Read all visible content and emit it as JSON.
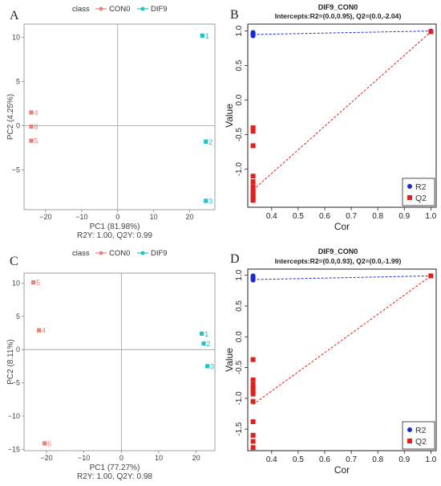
{
  "colors": {
    "con": "#F07E72",
    "dif": "#1EC3C8",
    "r2": "#1A2BD6",
    "q2": "#E0201B"
  },
  "chart_data": [
    {
      "id": "A",
      "panel_label": "A",
      "type": "scatter",
      "legend_title": "class",
      "legend": [
        "CON0",
        "DIF9"
      ],
      "xlabel": "PC1 (81.98%)",
      "ylabel": "PC2 (4.25%)",
      "footnote": "R2Y: 1.00, Q2Y: 0.99",
      "xlim": [
        -26,
        27
      ],
      "ylim": [
        -9.5,
        11.5
      ],
      "xticks": [
        -20,
        -10,
        0,
        10,
        20
      ],
      "yticks": [
        -5,
        0,
        5,
        10
      ],
      "grid": false,
      "points": [
        {
          "x": -24,
          "y": 1.5,
          "label": "4",
          "class": "CON0"
        },
        {
          "x": -24,
          "y": -0.1,
          "label": "6",
          "class": "CON0"
        },
        {
          "x": -24,
          "y": -1.7,
          "label": "5",
          "class": "CON0"
        },
        {
          "x": 23.5,
          "y": 10.2,
          "label": "1",
          "class": "DIF9"
        },
        {
          "x": 24.5,
          "y": -1.8,
          "label": "2",
          "class": "DIF9"
        },
        {
          "x": 24.5,
          "y": -8.5,
          "label": "3",
          "class": "DIF9"
        }
      ]
    },
    {
      "id": "B",
      "panel_label": "B",
      "type": "scatter",
      "title": "DIF9_CON0",
      "subtitle": "Intercepts:R2=(0.0,0.95), Q2=(0.0,-2.04)",
      "xlabel": "Cor",
      "ylabel": "Value",
      "xlim": [
        0.31,
        1.02
      ],
      "ylim": [
        -1.55,
        1.1
      ],
      "xticks": [
        0.4,
        0.5,
        0.6,
        0.7,
        0.8,
        0.9,
        1.0
      ],
      "xticklabels": [
        "0.4",
        "0.5",
        "0.6",
        "0.7",
        "0.8",
        "0.9",
        "1.0"
      ],
      "yticks": [
        -1.0,
        -0.5,
        0.0,
        0.5,
        1.0
      ],
      "yticklabels": [
        "-1.0",
        "-0.5",
        "0.0",
        "0.5",
        "1.0"
      ],
      "legend": [
        "R2",
        "Q2"
      ],
      "legend_position": "bottom-right",
      "series": [
        {
          "name": "R2",
          "x": [
            0.33,
            0.33,
            0.33,
            0.33,
            0.33,
            0.33,
            0.33,
            0.33,
            1.0
          ],
          "y": [
            0.93,
            0.94,
            0.95,
            0.95,
            0.96,
            0.96,
            0.97,
            0.98,
            1.0
          ]
        },
        {
          "name": "Q2",
          "x": [
            0.33,
            0.33,
            0.33,
            0.33,
            0.33,
            0.33,
            0.33,
            0.33,
            0.33,
            0.33,
            0.33,
            0.33,
            1.0
          ],
          "y": [
            -0.4,
            -0.45,
            -0.66,
            -1.1,
            -1.18,
            -1.25,
            -1.3,
            -1.33,
            -1.37,
            -1.4,
            -1.42,
            -1.45,
            0.99
          ]
        }
      ],
      "lines": [
        {
          "series": "R2",
          "from": [
            0.33,
            0.95
          ],
          "to": [
            1.0,
            1.0
          ]
        },
        {
          "series": "Q2",
          "from": [
            0.33,
            -1.3
          ],
          "to": [
            1.0,
            0.99
          ]
        }
      ]
    },
    {
      "id": "C",
      "panel_label": "C",
      "type": "scatter",
      "legend_title": "class",
      "legend": [
        "CON0",
        "DIF9"
      ],
      "xlabel": "PC1 (77.27%)",
      "ylabel": "PC2 (8.11%)",
      "footnote": "R2Y: 1.00, Q2Y: 0.98",
      "xlim": [
        -26,
        25
      ],
      "ylim": [
        -15.2,
        11.5
      ],
      "xticks": [
        -20,
        -10,
        0,
        10,
        20
      ],
      "yticks": [
        -15,
        -10,
        -5,
        0,
        5,
        10
      ],
      "grid": false,
      "points": [
        {
          "x": -23.5,
          "y": 10.1,
          "label": "5",
          "class": "CON0"
        },
        {
          "x": -22,
          "y": 2.9,
          "label": "4",
          "class": "CON0"
        },
        {
          "x": -20.5,
          "y": -14.1,
          "label": "6",
          "class": "CON0"
        },
        {
          "x": 21.5,
          "y": 2.4,
          "label": "1",
          "class": "DIF9"
        },
        {
          "x": 22,
          "y": 0.9,
          "label": "2",
          "class": "DIF9"
        },
        {
          "x": 23,
          "y": -2.5,
          "label": "3",
          "class": "DIF9"
        }
      ]
    },
    {
      "id": "D",
      "panel_label": "D",
      "type": "scatter",
      "title": "DIF9_CON0",
      "subtitle": "Intercepts:R2=(0.0,0.93), Q2=(0.0,-1.99)",
      "xlabel": "Cor",
      "ylabel": "Value",
      "xlim": [
        0.31,
        1.02
      ],
      "ylim": [
        -1.85,
        1.1
      ],
      "xticks": [
        0.4,
        0.5,
        0.6,
        0.7,
        0.8,
        0.9,
        1.0
      ],
      "xticklabels": [
        "0.4",
        "0.5",
        "0.6",
        "0.7",
        "0.8",
        "0.9",
        "1.0"
      ],
      "yticks": [
        -1.5,
        -1.0,
        -0.5,
        0.0,
        0.5,
        1.0
      ],
      "yticklabels": [
        "-1.5",
        "-1.0",
        "-0.5",
        "0.0",
        "0.5",
        "1.0"
      ],
      "legend": [
        "R2",
        "Q2"
      ],
      "legend_position": "bottom-right",
      "series": [
        {
          "name": "R2",
          "x": [
            0.33,
            0.33,
            0.33,
            0.33,
            0.33,
            0.33,
            0.33,
            1.0
          ],
          "y": [
            0.92,
            0.94,
            0.95,
            0.96,
            0.97,
            0.98,
            0.99,
            0.99
          ]
        },
        {
          "name": "Q2",
          "x": [
            0.33,
            0.33,
            0.33,
            0.33,
            0.33,
            0.33,
            0.33,
            0.33,
            0.33,
            0.33,
            0.33,
            1.0
          ],
          "y": [
            -0.37,
            -0.7,
            -0.78,
            -0.83,
            -0.87,
            -0.93,
            -1.05,
            -1.38,
            -1.6,
            -1.7,
            -1.8,
            0.99
          ]
        }
      ],
      "lines": [
        {
          "series": "R2",
          "from": [
            0.33,
            0.93
          ],
          "to": [
            1.0,
            0.99
          ]
        },
        {
          "series": "Q2",
          "from": [
            0.33,
            -1.1
          ],
          "to": [
            1.0,
            0.99
          ]
        }
      ]
    }
  ]
}
